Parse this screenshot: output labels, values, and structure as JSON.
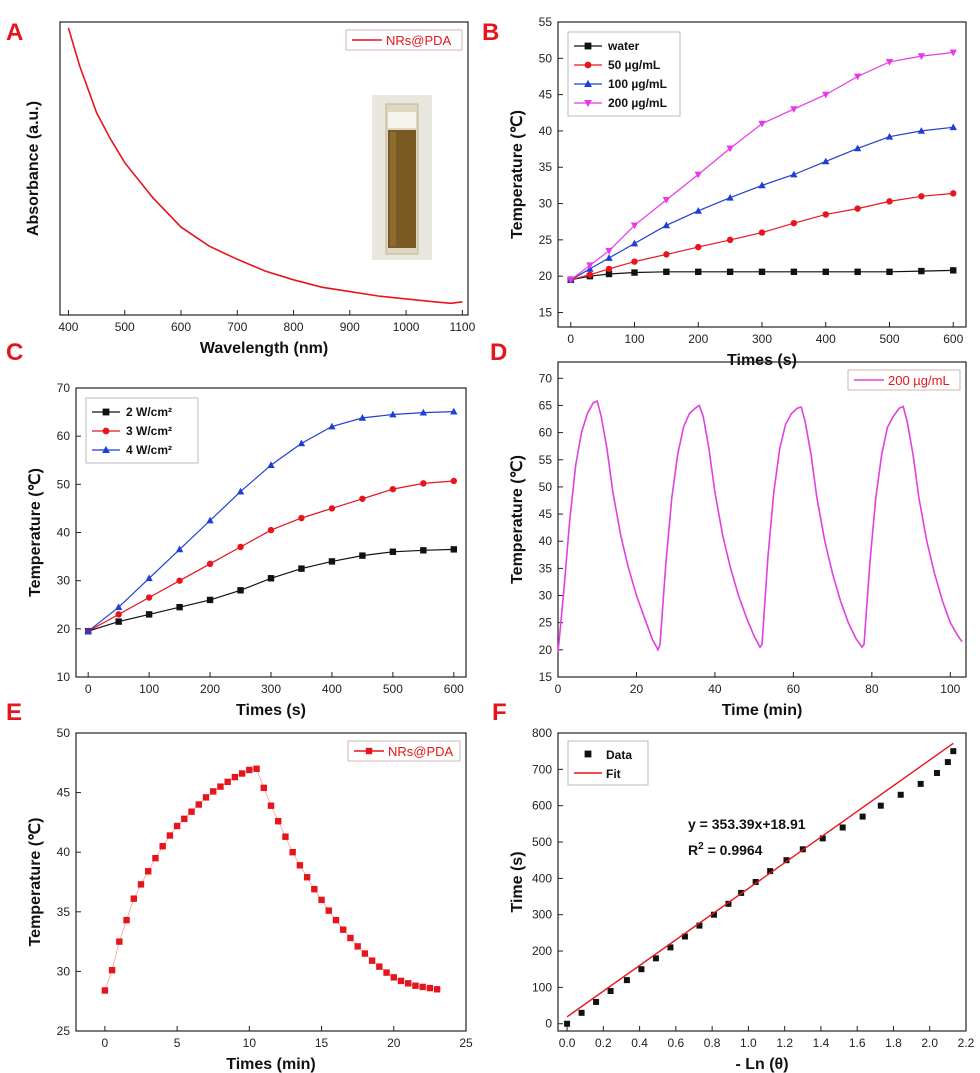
{
  "chart_data": [
    {
      "panel": "A",
      "type": "line",
      "xlabel": "Wavelength (nm)",
      "ylabel": "Absorbance (a.u.)",
      "xlim": [
        385,
        1110
      ],
      "ylim": [
        0,
        1
      ],
      "xticks": [
        400,
        500,
        600,
        700,
        800,
        900,
        1000,
        1100
      ],
      "yticks": [],
      "legend": "top-right",
      "series": [
        {
          "name": "NRs@PDA",
          "color": "#e8141c",
          "x": [
            400,
            420,
            450,
            475,
            500,
            550,
            600,
            650,
            700,
            750,
            800,
            850,
            900,
            950,
            1000,
            1050,
            1080,
            1100
          ],
          "y": [
            0.98,
            0.85,
            0.69,
            0.6,
            0.52,
            0.4,
            0.3,
            0.235,
            0.19,
            0.15,
            0.12,
            0.095,
            0.08,
            0.065,
            0.055,
            0.045,
            0.04,
            0.045
          ]
        }
      ],
      "inset": "cuvette-photo"
    },
    {
      "panel": "B",
      "type": "line",
      "xlabel": "Times (s)",
      "ylabel": "Temperature (℃)",
      "xlim": [
        -20,
        620
      ],
      "ylim": [
        13,
        55
      ],
      "xticks": [
        0,
        100,
        200,
        300,
        400,
        500,
        600
      ],
      "yticks": [
        15,
        20,
        25,
        30,
        35,
        40,
        45,
        50,
        55
      ],
      "legend": "top-left",
      "x": [
        0,
        30,
        60,
        100,
        150,
        200,
        250,
        300,
        350,
        400,
        450,
        500,
        550,
        600
      ],
      "series": [
        {
          "name": "water",
          "color": "#111111",
          "marker": "square",
          "values": [
            19.5,
            20.0,
            20.3,
            20.5,
            20.6,
            20.6,
            20.6,
            20.6,
            20.6,
            20.6,
            20.6,
            20.6,
            20.7,
            20.8
          ]
        },
        {
          "name": "50   µg/mL",
          "color": "#e8141c",
          "marker": "circle",
          "values": [
            19.5,
            20.2,
            21.0,
            22.0,
            23.0,
            24.0,
            25.0,
            26.0,
            27.3,
            28.5,
            29.3,
            30.3,
            31.0,
            31.4
          ]
        },
        {
          "name": "100 µg/mL",
          "color": "#1f3fd4",
          "marker": "triangle-up",
          "values": [
            19.5,
            21.0,
            22.5,
            24.5,
            27.0,
            29.0,
            30.8,
            32.5,
            34.0,
            35.8,
            37.6,
            39.2,
            40.0,
            40.5
          ]
        },
        {
          "name": "200 µg/mL",
          "color": "#e838e8",
          "marker": "triangle-down",
          "values": [
            19.5,
            21.5,
            23.5,
            27.0,
            30.5,
            34.0,
            37.6,
            41.0,
            43.0,
            45.0,
            47.5,
            49.5,
            50.3,
            50.8
          ]
        }
      ]
    },
    {
      "panel": "C",
      "type": "line",
      "xlabel": "Times (s)",
      "ylabel": "Temperature (℃)",
      "xlim": [
        -20,
        620
      ],
      "ylim": [
        10,
        70
      ],
      "xticks": [
        0,
        100,
        200,
        300,
        400,
        500,
        600
      ],
      "yticks": [
        10,
        20,
        30,
        40,
        50,
        60,
        70
      ],
      "legend": "top-left",
      "x": [
        0,
        50,
        100,
        150,
        200,
        250,
        300,
        350,
        400,
        450,
        500,
        550,
        600
      ],
      "series": [
        {
          "name": "2 W/cm²",
          "color": "#111111",
          "marker": "square",
          "values": [
            19.5,
            21.5,
            23.0,
            24.5,
            26.0,
            28.0,
            30.5,
            32.5,
            34.0,
            35.2,
            36.0,
            36.3,
            36.5
          ]
        },
        {
          "name": "3 W/cm²",
          "color": "#e8141c",
          "marker": "circle",
          "values": [
            19.5,
            23.0,
            26.5,
            30.0,
            33.5,
            37.0,
            40.5,
            43.0,
            45.0,
            47.0,
            49.0,
            50.2,
            50.7
          ]
        },
        {
          "name": "4 W/cm²",
          "color": "#1f3fd4",
          "marker": "triangle-up",
          "values": [
            19.5,
            24.5,
            30.5,
            36.5,
            42.5,
            48.5,
            54.0,
            58.5,
            62.0,
            63.8,
            64.5,
            64.9,
            65.1
          ]
        }
      ]
    },
    {
      "panel": "D",
      "type": "line",
      "xlabel": "Time (min)",
      "ylabel": "Temperature (℃)",
      "xlim": [
        0,
        104
      ],
      "ylim": [
        15,
        73
      ],
      "xticks": [
        0,
        20,
        40,
        60,
        80,
        100
      ],
      "yticks": [
        15,
        20,
        25,
        30,
        35,
        40,
        45,
        50,
        55,
        60,
        65,
        70
      ],
      "legend": "top-right",
      "series": [
        {
          "name": "200 µg/mL",
          "color": "#e040e0",
          "x": [
            0,
            1.5,
            3,
            4.5,
            6,
            7.5,
            9,
            10,
            11,
            12.5,
            14,
            16,
            18,
            20,
            22,
            24,
            25.5,
            26,
            27.5,
            29,
            30.5,
            32,
            33.5,
            35,
            36,
            37,
            38.5,
            40,
            42,
            44,
            46,
            48,
            50,
            51.5,
            52,
            53.5,
            55,
            56.5,
            58,
            59.5,
            61,
            62,
            63,
            64.5,
            66,
            68,
            70,
            72,
            74,
            76,
            77.5,
            78,
            79.5,
            81,
            82.5,
            84,
            85.5,
            87,
            88,
            89,
            90.5,
            92,
            94,
            96,
            98,
            100,
            102,
            103
          ],
          "y": [
            19.5,
            31,
            44,
            54,
            60,
            63.5,
            65.5,
            65.8,
            63,
            57,
            49,
            41,
            35,
            30,
            26,
            22,
            20,
            21,
            36,
            48,
            56,
            61,
            63.5,
            64.5,
            65,
            63,
            57,
            49,
            41,
            35,
            30,
            26,
            22.5,
            20.5,
            21,
            37,
            49,
            57,
            61.5,
            63.5,
            64.5,
            64.7,
            62,
            56,
            48,
            40,
            34,
            29,
            25,
            22,
            20.5,
            21,
            36,
            48,
            56,
            61,
            63,
            64.5,
            64.8,
            62,
            56,
            48,
            40,
            34,
            29,
            25,
            22.5,
            21.5
          ]
        }
      ]
    },
    {
      "panel": "E",
      "type": "scatter",
      "xlabel": "Times (min)",
      "ylabel": "Temperature (℃)",
      "xlim": [
        -2,
        25
      ],
      "ylim": [
        25,
        50
      ],
      "xticks": [
        0,
        5,
        10,
        15,
        20,
        25
      ],
      "yticks": [
        25,
        30,
        35,
        40,
        45,
        50
      ],
      "legend": "top-right",
      "series": [
        {
          "name": "NRs@PDA",
          "color": "#e8141c",
          "marker": "square",
          "x": [
            0,
            0.5,
            1,
            1.5,
            2,
            2.5,
            3,
            3.5,
            4,
            4.5,
            5,
            5.5,
            6,
            6.5,
            7,
            7.5,
            8,
            8.5,
            9,
            9.5,
            10,
            10.5,
            11,
            11.5,
            12,
            12.5,
            13,
            13.5,
            14,
            14.5,
            15,
            15.5,
            16,
            16.5,
            17,
            17.5,
            18,
            18.5,
            19,
            19.5,
            20,
            20.5,
            21,
            21.5,
            22,
            22.5,
            23
          ],
          "y": [
            28.4,
            30.1,
            32.5,
            34.3,
            36.1,
            37.3,
            38.4,
            39.5,
            40.5,
            41.4,
            42.2,
            42.8,
            43.4,
            44.0,
            44.6,
            45.1,
            45.5,
            45.9,
            46.3,
            46.6,
            46.9,
            47.0,
            45.4,
            43.9,
            42.6,
            41.3,
            40.0,
            38.9,
            37.9,
            36.9,
            36.0,
            35.1,
            34.3,
            33.5,
            32.8,
            32.1,
            31.5,
            30.9,
            30.4,
            29.9,
            29.5,
            29.2,
            29.0,
            28.8,
            28.7,
            28.6,
            28.5
          ]
        }
      ]
    },
    {
      "panel": "F",
      "type": "scatter",
      "xlabel": "- Ln (θ)",
      "ylabel": "Time (s)",
      "xlim": [
        -0.05,
        2.2
      ],
      "ylim": [
        -20,
        800
      ],
      "xticks": [
        0.0,
        0.2,
        0.4,
        0.6,
        0.8,
        1.0,
        1.2,
        1.4,
        1.6,
        1.8,
        2.0,
        2.2
      ],
      "yticks": [
        0,
        100,
        200,
        300,
        400,
        500,
        600,
        700,
        800
      ],
      "legend": "top-left",
      "annotation_eq": "y = 353.39x+18.91",
      "annotation_r2_prefix": "R",
      "annotation_r2_exp": "2",
      "annotation_r2_value": " = 0.9964",
      "series": [
        {
          "name": "Data",
          "color": "#111111",
          "marker": "square",
          "x": [
            0.0,
            0.08,
            0.16,
            0.24,
            0.33,
            0.41,
            0.49,
            0.57,
            0.65,
            0.73,
            0.81,
            0.89,
            0.96,
            1.04,
            1.12,
            1.21,
            1.3,
            1.41,
            1.52,
            1.63,
            1.73,
            1.84,
            1.95,
            2.04,
            2.1,
            2.13
          ],
          "y": [
            0,
            30,
            60,
            90,
            120,
            150,
            180,
            210,
            240,
            270,
            300,
            330,
            360,
            390,
            420,
            450,
            480,
            510,
            540,
            570,
            600,
            630,
            660,
            690,
            720,
            750
          ]
        },
        {
          "name": "Fit",
          "color": "#e8141c",
          "line": true,
          "slope": 353.39,
          "intercept": 18.91,
          "x_from": 0.0,
          "x_to": 2.13
        }
      ]
    }
  ]
}
